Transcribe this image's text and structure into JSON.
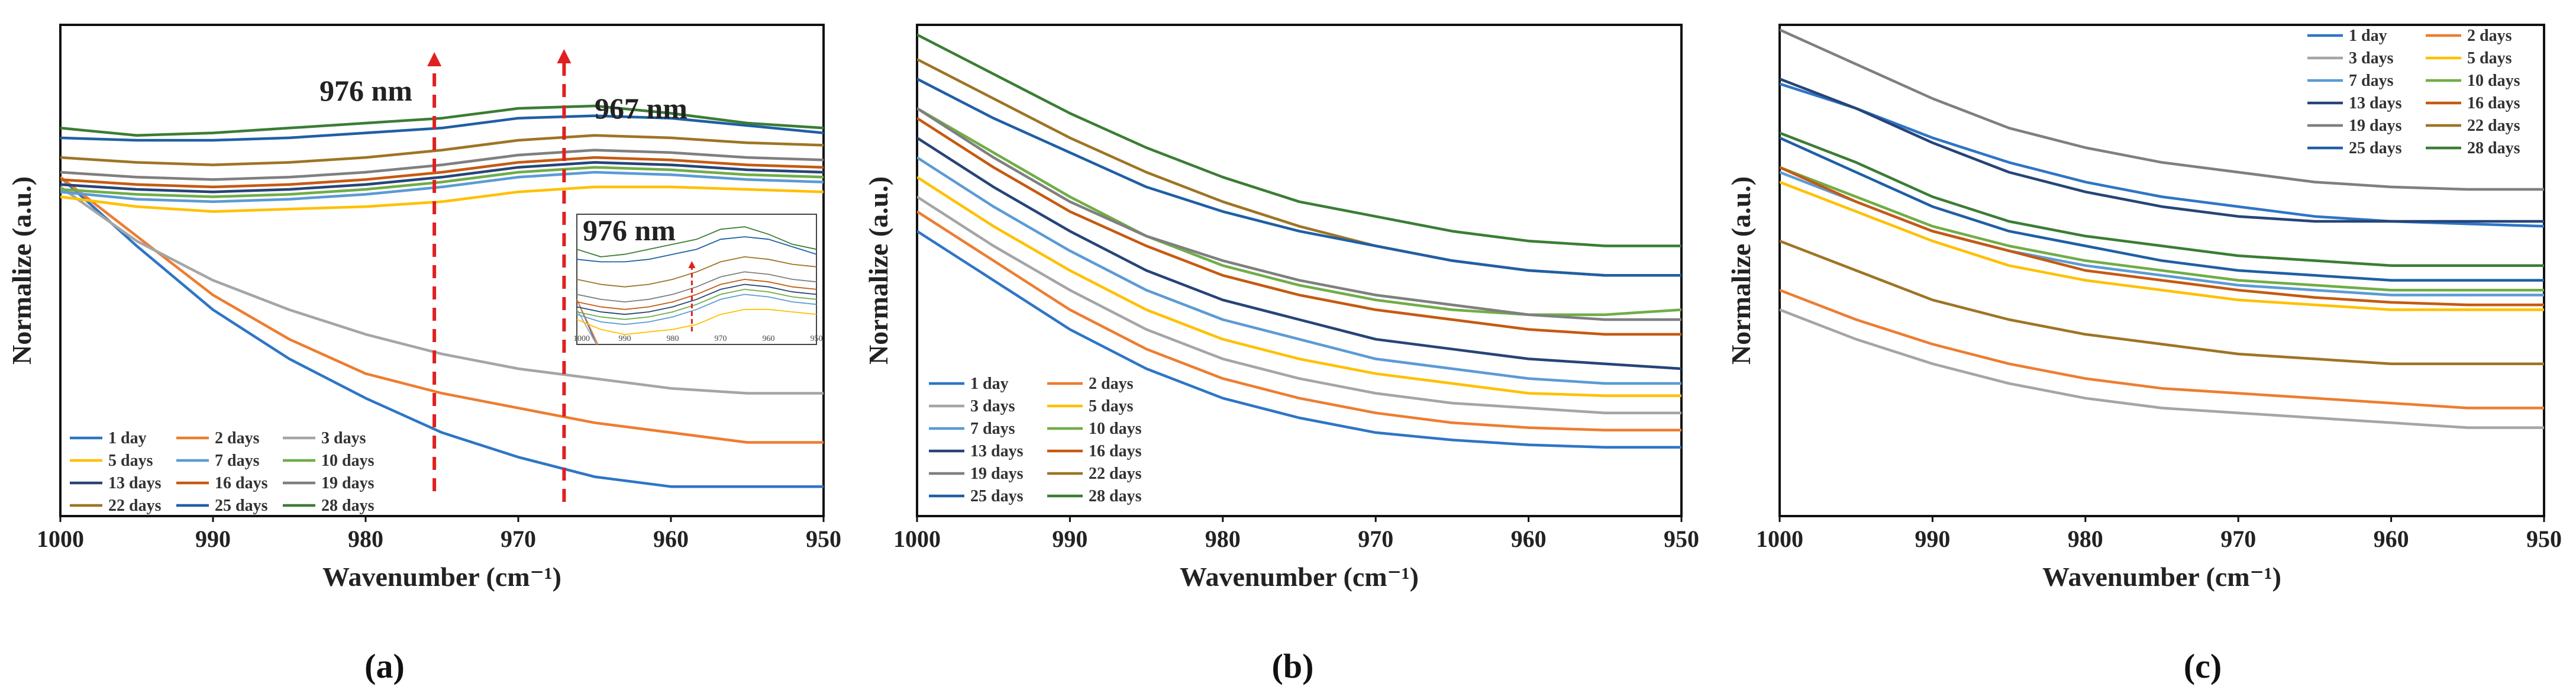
{
  "chart_data": [
    {
      "type": "line",
      "panel_label": "(a)",
      "xlabel": "Wavenumber (cm⁻¹)",
      "ylabel": "Normalize (a.u.)",
      "xlim": [
        1000,
        950
      ],
      "ylim": [
        0,
        1
      ],
      "xticks": [
        1000,
        990,
        980,
        970,
        960,
        950
      ],
      "legend_position": "bottom-left",
      "legend_columns": 3,
      "annotations": [
        {
          "text": "976 nm",
          "x": 975.5
        },
        {
          "text": "967 nm",
          "x": 967
        }
      ],
      "inset": {
        "label": "976 nm",
        "xticks": [
          "1000",
          "990",
          "980",
          "970",
          "960",
          "950"
        ]
      },
      "x": [
        1000,
        995,
        990,
        985,
        980,
        975,
        970,
        965,
        960,
        955,
        950
      ],
      "series": [
        {
          "name": "1 day",
          "color": "#2e75c6",
          "values": [
            0.69,
            0.55,
            0.42,
            0.32,
            0.24,
            0.17,
            0.12,
            0.08,
            0.06,
            0.06,
            0.06
          ]
        },
        {
          "name": "2 days",
          "color": "#ed7d31",
          "values": [
            0.69,
            0.57,
            0.45,
            0.36,
            0.29,
            0.25,
            0.22,
            0.19,
            0.17,
            0.15,
            0.15
          ]
        },
        {
          "name": "3 days",
          "color": "#a5a5a5",
          "values": [
            0.67,
            0.56,
            0.48,
            0.42,
            0.37,
            0.33,
            0.3,
            0.28,
            0.26,
            0.25,
            0.25
          ]
        },
        {
          "name": "5 days",
          "color": "#ffc000",
          "values": [
            0.65,
            0.63,
            0.62,
            0.625,
            0.63,
            0.64,
            0.66,
            0.67,
            0.67,
            0.665,
            0.66
          ]
        },
        {
          "name": "7 days",
          "color": "#5b9bd5",
          "values": [
            0.66,
            0.645,
            0.64,
            0.645,
            0.655,
            0.67,
            0.69,
            0.7,
            0.695,
            0.685,
            0.68
          ]
        },
        {
          "name": "10 days",
          "color": "#70ad47",
          "values": [
            0.665,
            0.655,
            0.65,
            0.655,
            0.665,
            0.68,
            0.7,
            0.71,
            0.705,
            0.695,
            0.69
          ]
        },
        {
          "name": "13 days",
          "color": "#264478",
          "values": [
            0.675,
            0.665,
            0.66,
            0.665,
            0.675,
            0.69,
            0.71,
            0.72,
            0.715,
            0.705,
            0.7
          ]
        },
        {
          "name": "16 days",
          "color": "#c55a11",
          "values": [
            0.685,
            0.675,
            0.67,
            0.675,
            0.685,
            0.7,
            0.72,
            0.73,
            0.725,
            0.715,
            0.71
          ]
        },
        {
          "name": "19 days",
          "color": "#7f7f7f",
          "values": [
            0.7,
            0.69,
            0.685,
            0.69,
            0.7,
            0.715,
            0.735,
            0.745,
            0.74,
            0.73,
            0.725
          ]
        },
        {
          "name": "22 days",
          "color": "#9e7424",
          "values": [
            0.73,
            0.72,
            0.715,
            0.72,
            0.73,
            0.745,
            0.765,
            0.775,
            0.77,
            0.76,
            0.755
          ]
        },
        {
          "name": "25 days",
          "color": "#1f5fa5",
          "values": [
            0.77,
            0.765,
            0.765,
            0.77,
            0.78,
            0.79,
            0.81,
            0.815,
            0.81,
            0.795,
            0.78
          ]
        },
        {
          "name": "28 days",
          "color": "#3b7d34",
          "values": [
            0.79,
            0.775,
            0.78,
            0.79,
            0.8,
            0.81,
            0.83,
            0.835,
            0.82,
            0.8,
            0.79
          ]
        }
      ]
    },
    {
      "type": "line",
      "panel_label": "(b)",
      "xlabel": "Wavenumber (cm⁻¹)",
      "ylabel": "Normalize (a.u.)",
      "xlim": [
        1000,
        950
      ],
      "ylim": [
        0,
        1
      ],
      "xticks": [
        1000,
        990,
        980,
        970,
        960,
        950
      ],
      "legend_position": "bottom-left",
      "legend_columns": 2,
      "x": [
        1000,
        995,
        990,
        985,
        980,
        975,
        970,
        965,
        960,
        955,
        950
      ],
      "series": [
        {
          "name": "1 day",
          "color": "#2e75c6",
          "values": [
            0.58,
            0.48,
            0.38,
            0.3,
            0.24,
            0.2,
            0.17,
            0.155,
            0.145,
            0.14,
            0.14
          ]
        },
        {
          "name": "2 days",
          "color": "#ed7d31",
          "values": [
            0.62,
            0.52,
            0.42,
            0.34,
            0.28,
            0.24,
            0.21,
            0.19,
            0.18,
            0.175,
            0.175
          ]
        },
        {
          "name": "3 days",
          "color": "#a5a5a5",
          "values": [
            0.65,
            0.55,
            0.46,
            0.38,
            0.32,
            0.28,
            0.25,
            0.23,
            0.22,
            0.21,
            0.21
          ]
        },
        {
          "name": "5 days",
          "color": "#ffc000",
          "values": [
            0.69,
            0.59,
            0.5,
            0.42,
            0.36,
            0.32,
            0.29,
            0.27,
            0.25,
            0.245,
            0.245
          ]
        },
        {
          "name": "7 days",
          "color": "#5b9bd5",
          "values": [
            0.73,
            0.63,
            0.54,
            0.46,
            0.4,
            0.36,
            0.32,
            0.3,
            0.28,
            0.27,
            0.27
          ]
        },
        {
          "name": "10 days",
          "color": "#70ad47",
          "values": [
            0.83,
            0.74,
            0.65,
            0.57,
            0.51,
            0.47,
            0.44,
            0.42,
            0.41,
            0.41,
            0.42
          ]
        },
        {
          "name": "13 days",
          "color": "#264478",
          "values": [
            0.77,
            0.67,
            0.58,
            0.5,
            0.44,
            0.4,
            0.36,
            0.34,
            0.32,
            0.31,
            0.3
          ]
        },
        {
          "name": "16 days",
          "color": "#c55a11",
          "values": [
            0.81,
            0.71,
            0.62,
            0.55,
            0.49,
            0.45,
            0.42,
            0.4,
            0.38,
            0.37,
            0.37
          ]
        },
        {
          "name": "19 days",
          "color": "#7f7f7f",
          "values": [
            0.83,
            0.73,
            0.64,
            0.57,
            0.52,
            0.48,
            0.45,
            0.43,
            0.41,
            0.4,
            0.4
          ]
        },
        {
          "name": "22 days",
          "color": "#9e7424",
          "values": [
            0.93,
            0.85,
            0.77,
            0.7,
            0.64,
            0.59,
            0.55,
            0.52,
            0.5,
            0.49,
            0.49
          ]
        },
        {
          "name": "25 days",
          "color": "#1f5fa5",
          "values": [
            0.89,
            0.81,
            0.74,
            0.67,
            0.62,
            0.58,
            0.55,
            0.52,
            0.5,
            0.49,
            0.49
          ]
        },
        {
          "name": "28 days",
          "color": "#3b7d34",
          "values": [
            0.98,
            0.9,
            0.82,
            0.75,
            0.69,
            0.64,
            0.61,
            0.58,
            0.56,
            0.55,
            0.55
          ]
        }
      ]
    },
    {
      "type": "line",
      "panel_label": "(c)",
      "xlabel": "Wavenumber (cm⁻¹)",
      "ylabel": "Normalize (a.u.)",
      "xlim": [
        1000,
        950
      ],
      "ylim": [
        0,
        1
      ],
      "xticks": [
        1000,
        990,
        980,
        970,
        960,
        950
      ],
      "legend_position": "top-right",
      "legend_columns": 2,
      "x": [
        1000,
        995,
        990,
        985,
        980,
        975,
        970,
        965,
        960,
        955,
        950
      ],
      "series": [
        {
          "name": "1 day",
          "color": "#2e75c6",
          "values": [
            0.88,
            0.83,
            0.77,
            0.72,
            0.68,
            0.65,
            0.63,
            0.61,
            0.6,
            0.595,
            0.59
          ]
        },
        {
          "name": "2 days",
          "color": "#ed7d31",
          "values": [
            0.46,
            0.4,
            0.35,
            0.31,
            0.28,
            0.26,
            0.25,
            0.24,
            0.23,
            0.22,
            0.22
          ]
        },
        {
          "name": "3 days",
          "color": "#a5a5a5",
          "values": [
            0.42,
            0.36,
            0.31,
            0.27,
            0.24,
            0.22,
            0.21,
            0.2,
            0.19,
            0.18,
            0.18
          ]
        },
        {
          "name": "5 days",
          "color": "#ffc000",
          "values": [
            0.68,
            0.62,
            0.56,
            0.51,
            0.48,
            0.46,
            0.44,
            0.43,
            0.42,
            0.42,
            0.42
          ]
        },
        {
          "name": "7 days",
          "color": "#5b9bd5",
          "values": [
            0.7,
            0.64,
            0.58,
            0.54,
            0.51,
            0.49,
            0.47,
            0.46,
            0.45,
            0.45,
            0.45
          ]
        },
        {
          "name": "10 days",
          "color": "#70ad47",
          "values": [
            0.71,
            0.65,
            0.59,
            0.55,
            0.52,
            0.5,
            0.48,
            0.47,
            0.46,
            0.46,
            0.46
          ]
        },
        {
          "name": "13 days",
          "color": "#264478",
          "values": [
            0.89,
            0.83,
            0.76,
            0.7,
            0.66,
            0.63,
            0.61,
            0.6,
            0.6,
            0.6,
            0.6
          ]
        },
        {
          "name": "16 days",
          "color": "#c55a11",
          "values": [
            0.71,
            0.64,
            0.58,
            0.54,
            0.5,
            0.48,
            0.46,
            0.445,
            0.435,
            0.43,
            0.43
          ]
        },
        {
          "name": "19 days",
          "color": "#7f7f7f",
          "values": [
            0.99,
            0.92,
            0.85,
            0.79,
            0.75,
            0.72,
            0.7,
            0.68,
            0.67,
            0.665,
            0.665
          ]
        },
        {
          "name": "22 days",
          "color": "#9e7424",
          "values": [
            0.56,
            0.5,
            0.44,
            0.4,
            0.37,
            0.35,
            0.33,
            0.32,
            0.31,
            0.31,
            0.31
          ]
        },
        {
          "name": "25 days",
          "color": "#1f5fa5",
          "values": [
            0.77,
            0.7,
            0.63,
            0.58,
            0.55,
            0.52,
            0.5,
            0.49,
            0.48,
            0.48,
            0.48
          ]
        },
        {
          "name": "28 days",
          "color": "#3b7d34",
          "values": [
            0.78,
            0.72,
            0.65,
            0.6,
            0.57,
            0.55,
            0.53,
            0.52,
            0.51,
            0.51,
            0.51
          ]
        }
      ]
    }
  ]
}
